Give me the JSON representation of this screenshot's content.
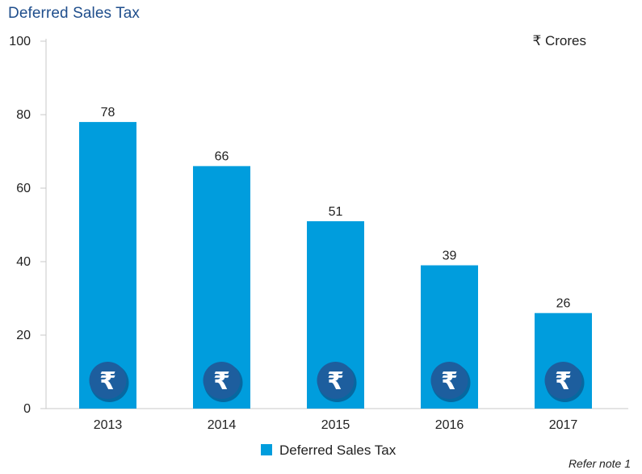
{
  "chart_data": {
    "type": "bar",
    "title": "Deferred Sales Tax",
    "unit_label": "₹ Crores",
    "categories": [
      "2013",
      "2014",
      "2015",
      "2016",
      "2017"
    ],
    "series": [
      {
        "name": "Deferred Sales Tax",
        "values": [
          78,
          66,
          51,
          39,
          26
        ]
      }
    ],
    "data_labels": [
      "78",
      "66",
      "51",
      "39",
      "26"
    ],
    "y_ticks": [
      "0",
      "20",
      "40",
      "60",
      "80",
      "100"
    ],
    "ylim": [
      0,
      100
    ],
    "xlabel": "",
    "ylabel": "",
    "grid": false,
    "legend_position": "bottom",
    "bar_icon": "rupee-icon",
    "colors": {
      "bar": "#009ddd",
      "icon_circle": "#1d5e9e",
      "icon_shadow": "#0b3c6e"
    }
  },
  "footnote": "Refer note 1"
}
